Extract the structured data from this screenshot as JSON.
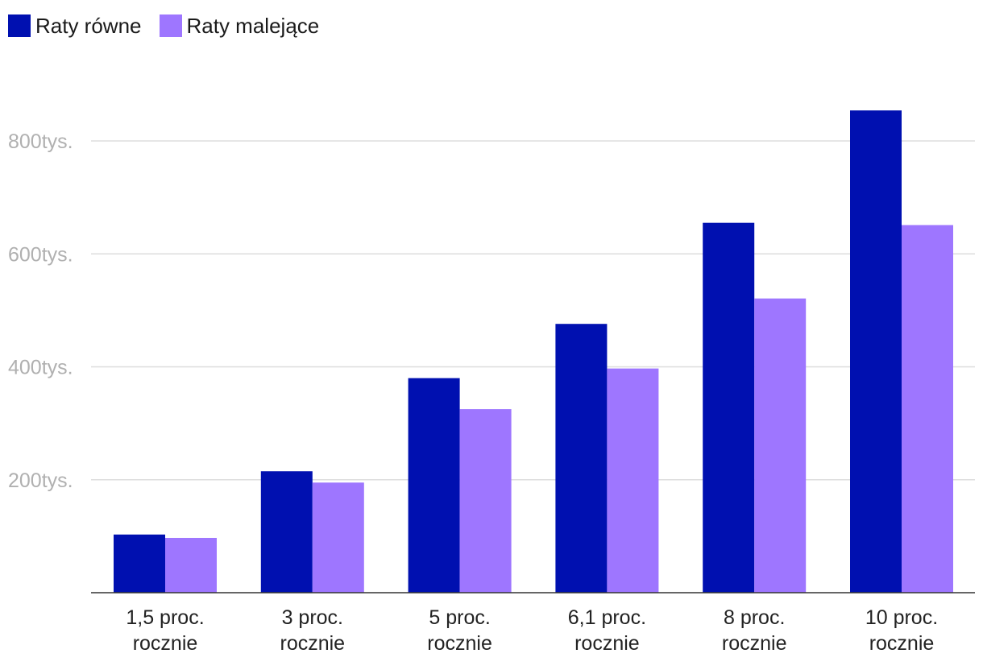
{
  "chart_data": {
    "type": "bar",
    "title": "",
    "xlabel": "",
    "ylabel": "",
    "ylim": [
      0,
      800000
    ],
    "y_tick_values": [
      200000,
      400000,
      600000,
      800000
    ],
    "y_tick_labels": [
      "200tys.",
      "400tys.",
      "600tys.",
      "800tys."
    ],
    "categories": [
      [
        "1,5 proc.",
        "rocznie"
      ],
      [
        "3 proc.",
        "rocznie"
      ],
      [
        "5 proc.",
        "rocznie"
      ],
      [
        "6,1 proc.",
        "rocznie"
      ],
      [
        "8 proc.",
        "rocznie"
      ],
      [
        "10 proc.",
        "rocznie"
      ]
    ],
    "series": [
      {
        "name": "Raty równe",
        "color": "#0010b0",
        "values": [
          103000,
          215000,
          380000,
          476000,
          655000,
          854000
        ]
      },
      {
        "name": "Raty malejące",
        "color": "#9e76ff",
        "values": [
          97000,
          195000,
          325000,
          397000,
          521000,
          651000
        ]
      }
    ],
    "grid": true,
    "legend_position": "top-left"
  }
}
